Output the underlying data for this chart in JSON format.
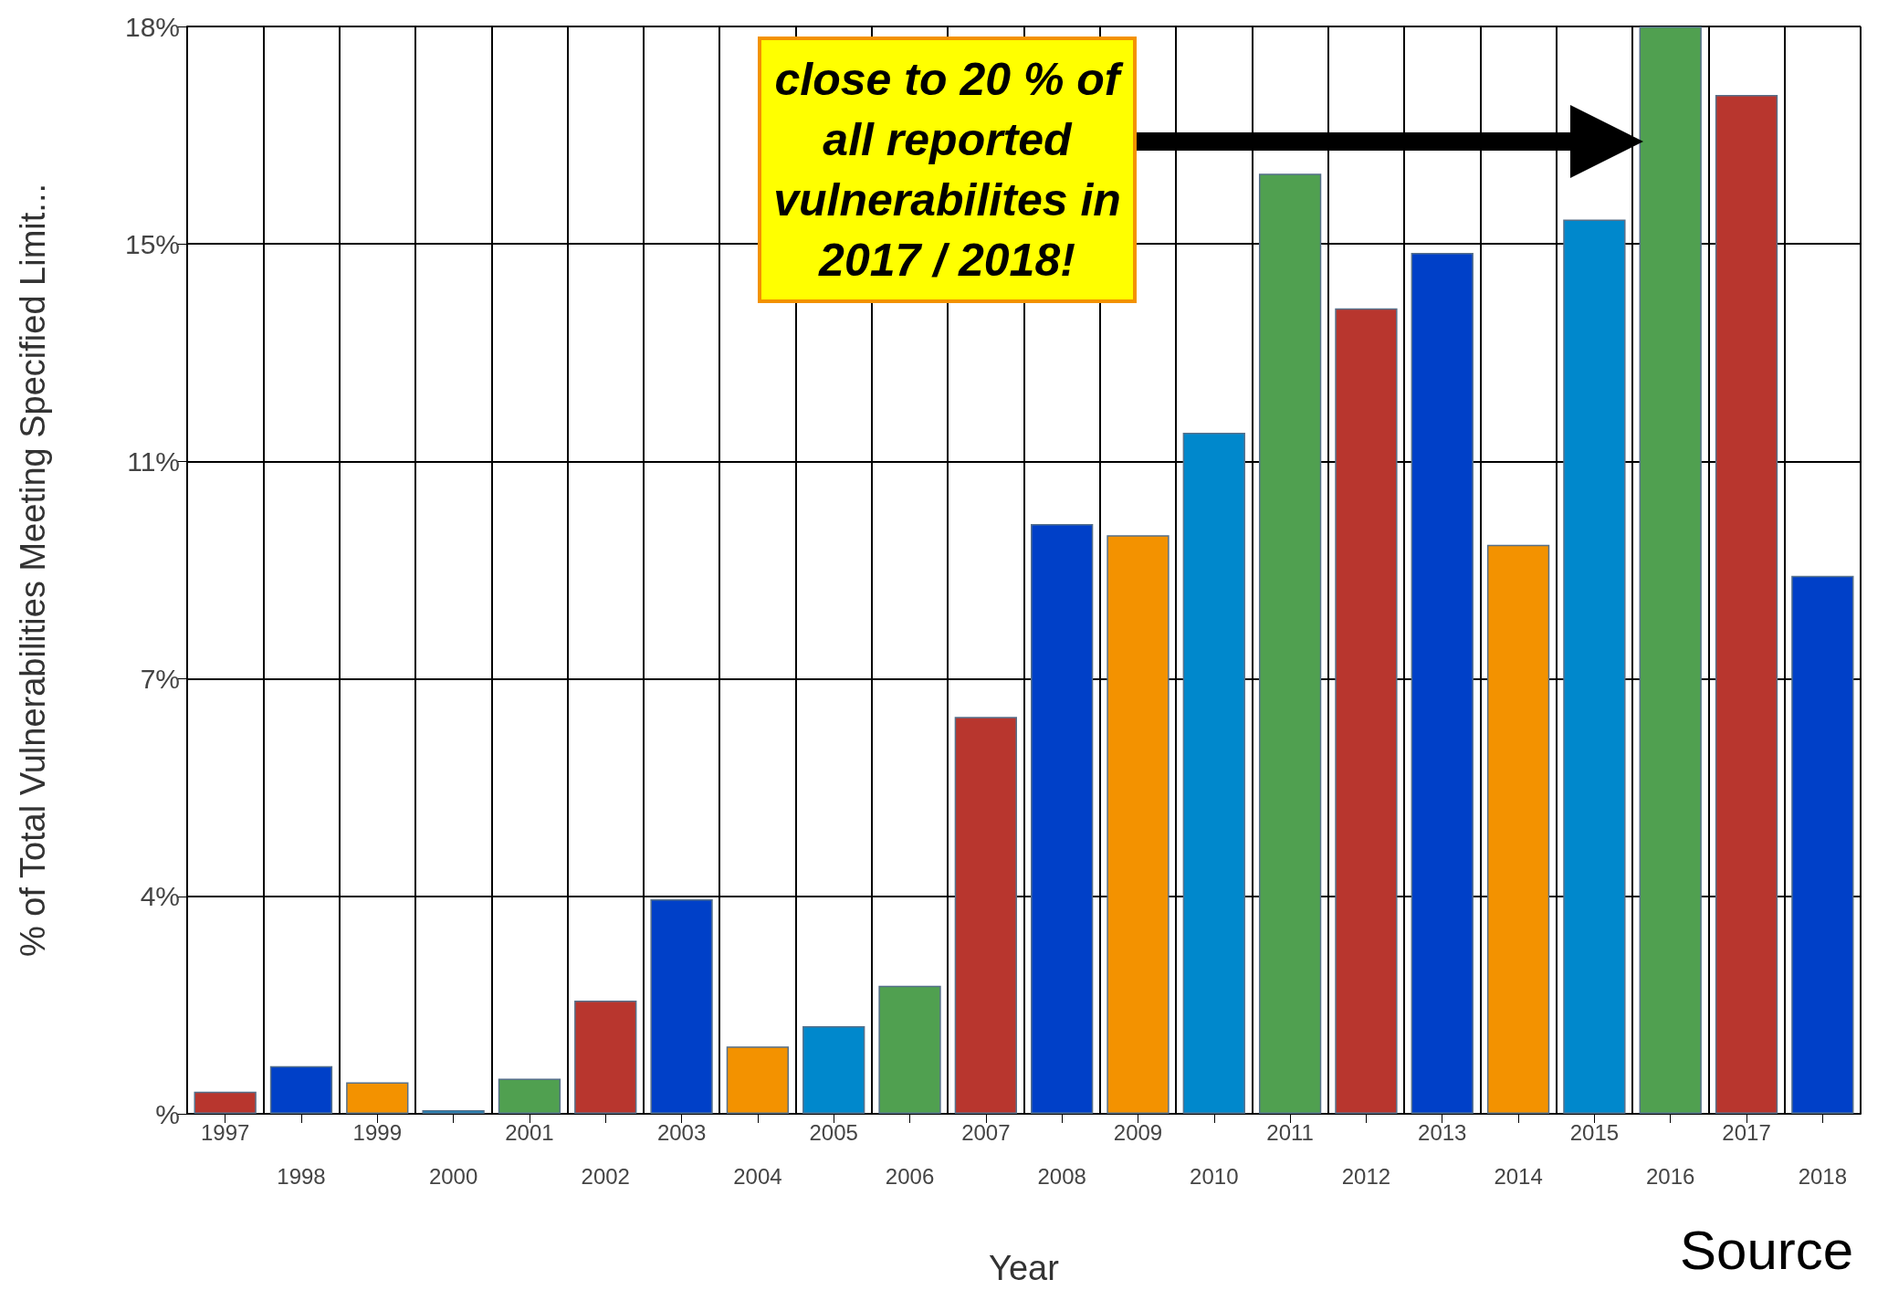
{
  "chart_data": {
    "type": "bar",
    "categories": [
      "1997",
      "1998",
      "1999",
      "2000",
      "2001",
      "2002",
      "2003",
      "2004",
      "2005",
      "2006",
      "2007",
      "2008",
      "2009",
      "2010",
      "2011",
      "2012",
      "2013",
      "2014",
      "2015",
      "2016",
      "2017",
      "2018"
    ],
    "values": [
      0.37,
      0.8,
      0.53,
      0.06,
      0.59,
      1.9,
      3.6,
      1.13,
      1.47,
      2.15,
      6.66,
      9.9,
      9.71,
      11.43,
      15.78,
      13.52,
      14.45,
      9.55,
      15.01,
      18.25,
      17.1,
      9.03
    ],
    "colors": [
      "#b8362e",
      "#0040c8",
      "#f39200",
      "#0088cc",
      "#50a050",
      "#b8362e",
      "#0040c8",
      "#f39200",
      "#0088cc",
      "#50a050",
      "#b8362e",
      "#0040c8",
      "#f39200",
      "#0088cc",
      "#50a050",
      "#b8362e",
      "#0040c8",
      "#f39200",
      "#0088cc",
      "#50a050",
      "#b8362e",
      "#0040c8"
    ],
    "xlabel": "Year",
    "ylabel": "% of Total Vulnerabilities Meeting Specified Limit...",
    "ylim": [
      0,
      18.25
    ],
    "yticks": [
      {
        "value": 0,
        "label": "%"
      },
      {
        "value": 3.65,
        "label": "4%"
      },
      {
        "value": 7.3,
        "label": "7%"
      },
      {
        "value": 10.95,
        "label": "11%"
      },
      {
        "value": 14.6,
        "label": "15%"
      },
      {
        "value": 18.25,
        "label": "18%"
      }
    ],
    "grid": true,
    "annotations": [
      "close to 20 % of all reported vulnerabilites in 2017 / 2018!",
      "Source"
    ]
  }
}
